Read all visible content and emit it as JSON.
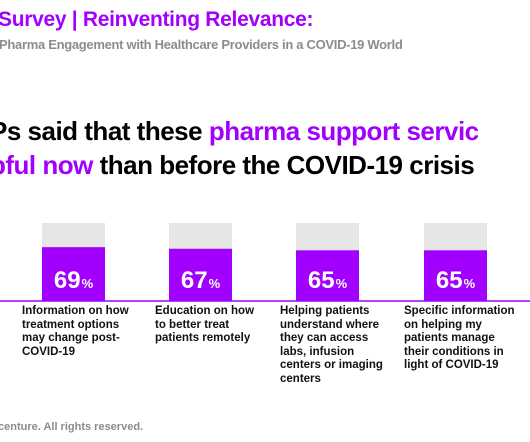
{
  "header": {
    "title": "Survey | Reinventing Relevance:",
    "subtitle": "Pharma Engagement with Healthcare Providers in a COVID-19 World"
  },
  "headline": {
    "line1_pre": "Ps said that these ",
    "line1_highlight": "pharma support servic",
    "line2_highlight": "pful now",
    "line2_post": " than before the COVID-19 crisis"
  },
  "chart_data": {
    "type": "bar",
    "categories": [
      "Information on how treatment options may change post-COVID-19",
      "Education on how to better treat patients remotely",
      "Helping patients understand where they can access labs, infusion centers or imaging centers",
      "Specific information on helping my patients manage their conditions in light of COVID-19"
    ],
    "values": [
      69,
      67,
      65,
      65
    ],
    "value_labels": [
      "69",
      "67",
      "65",
      "65"
    ],
    "unit": "%",
    "ylim": [
      0,
      100
    ],
    "colors": {
      "bar": "#a100ff",
      "track": "#e6e6e6",
      "axis": "#a100ff"
    }
  },
  "footer": {
    "text": "centure. All rights reserved."
  }
}
